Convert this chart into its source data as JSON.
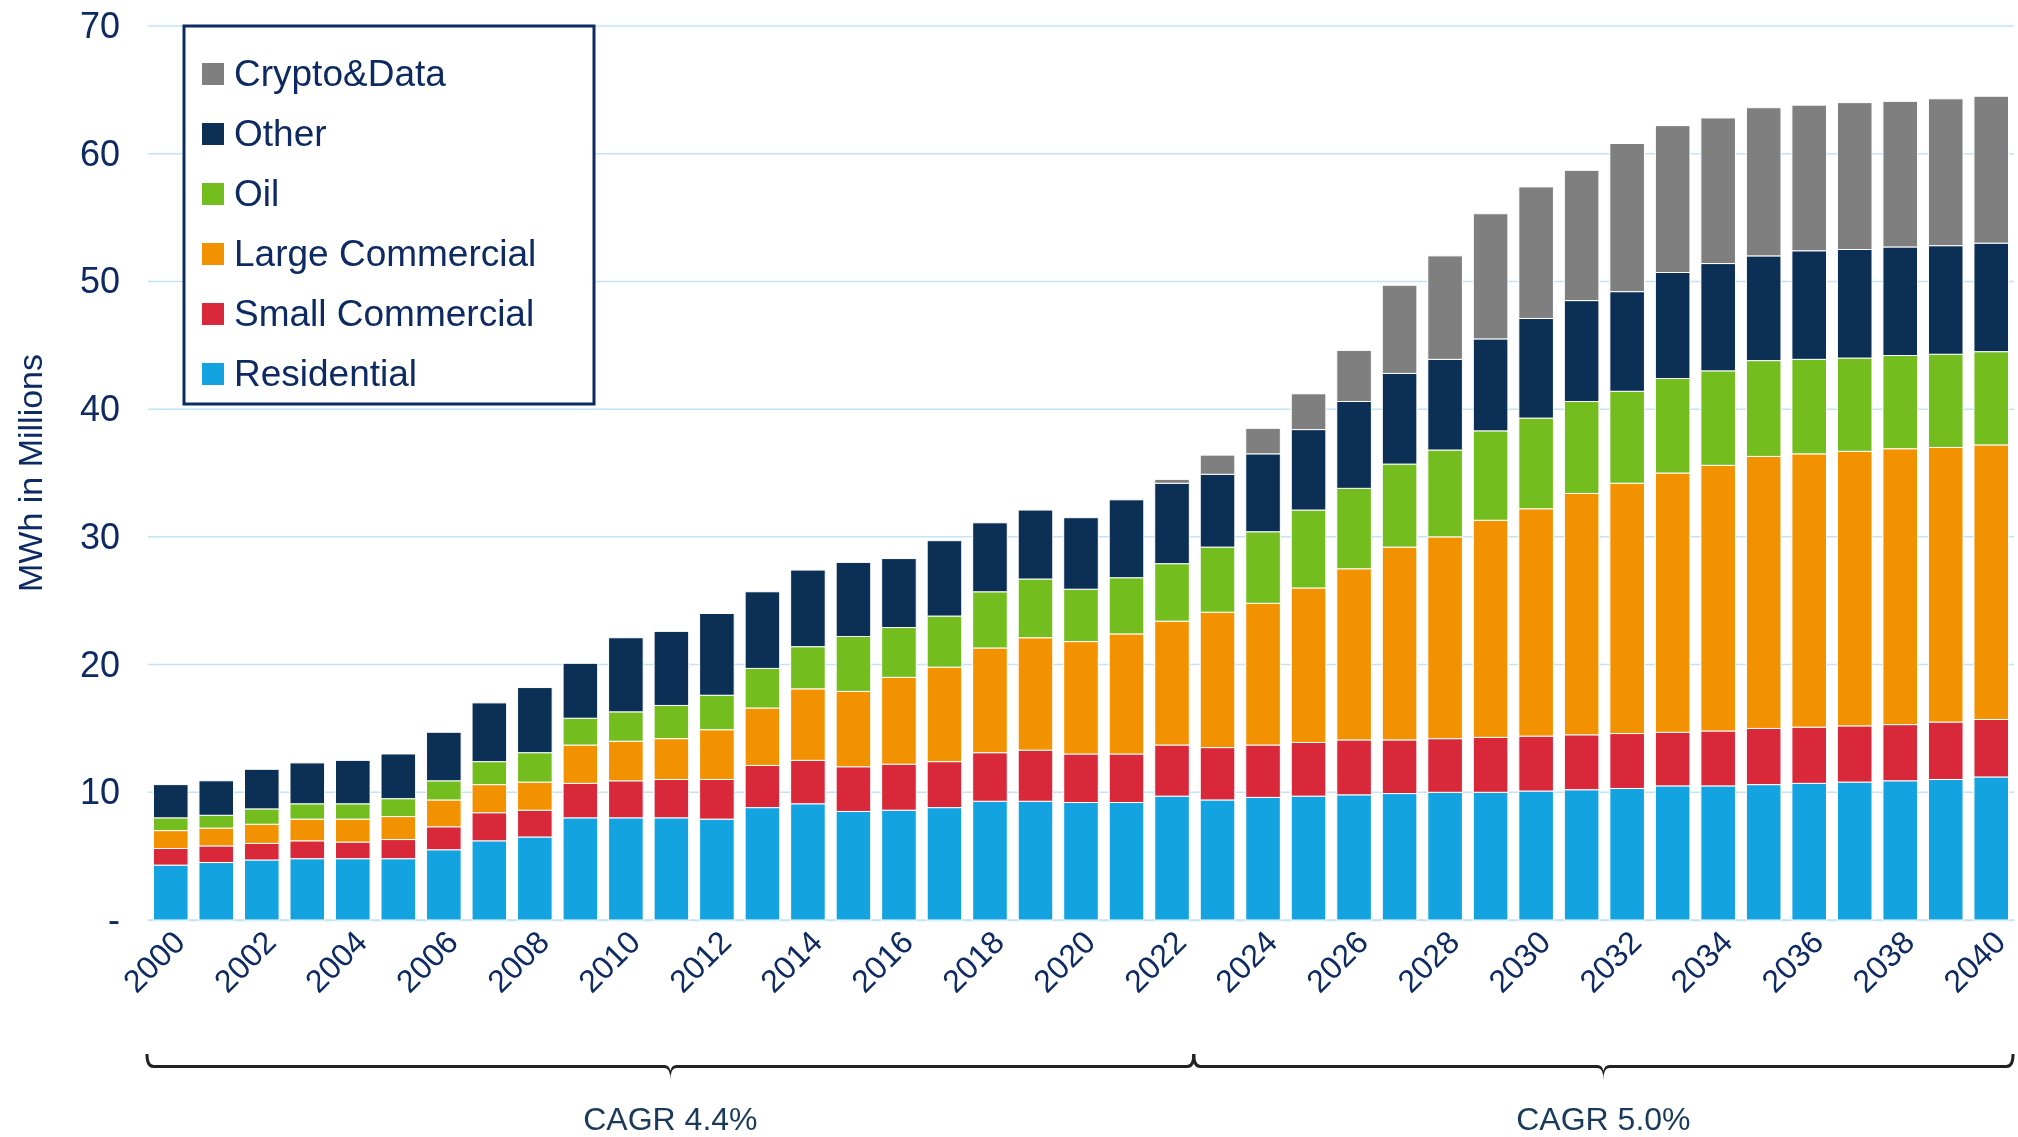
{
  "chart_data": {
    "type": "bar",
    "stacked": true,
    "ylabel": "MWh in Millions",
    "categories": [
      "2000",
      null,
      "2002",
      null,
      "2004",
      null,
      "2006",
      null,
      "2008",
      null,
      "2010",
      null,
      "2012",
      null,
      "2014",
      null,
      "2016",
      null,
      "2018",
      null,
      "2020",
      null,
      "2022",
      null,
      "2024",
      null,
      "2026",
      null,
      "2028",
      null,
      "2030",
      null,
      "2032",
      null,
      "2034",
      null,
      "2036",
      null,
      "2038",
      null,
      "2040"
    ],
    "series": [
      {
        "name": "Residential",
        "color": "#13a3e0",
        "values": [
          4.3,
          4.5,
          4.7,
          4.8,
          4.8,
          4.8,
          5.5,
          6.2,
          6.5,
          8.0,
          8.0,
          8.0,
          7.9,
          8.8,
          9.1,
          8.5,
          8.6,
          8.8,
          9.3,
          9.3,
          9.2,
          9.2,
          9.7,
          9.4,
          9.6,
          9.7,
          9.8,
          9.9,
          10.0,
          10.0,
          10.1,
          10.2,
          10.3,
          10.5,
          10.5,
          10.6,
          10.7,
          10.8,
          10.9,
          11.0,
          11.2
        ]
      },
      {
        "name": "Small Commercial",
        "color": "#d8283a",
        "values": [
          1.3,
          1.3,
          1.3,
          1.4,
          1.3,
          1.5,
          1.8,
          2.2,
          2.1,
          2.7,
          2.9,
          3.0,
          3.1,
          3.3,
          3.4,
          3.5,
          3.6,
          3.6,
          3.8,
          4.0,
          3.8,
          3.8,
          4.0,
          4.1,
          4.1,
          4.2,
          4.3,
          4.2,
          4.2,
          4.3,
          4.3,
          4.3,
          4.3,
          4.2,
          4.3,
          4.4,
          4.4,
          4.4,
          4.4,
          4.5,
          4.5
        ]
      },
      {
        "name": "Large Commercial",
        "color": "#f39200",
        "values": [
          1.4,
          1.4,
          1.5,
          1.7,
          1.8,
          1.8,
          2.1,
          2.2,
          2.2,
          3.0,
          3.1,
          3.2,
          3.9,
          4.5,
          5.6,
          5.9,
          6.8,
          7.4,
          8.2,
          8.8,
          8.8,
          9.4,
          9.7,
          10.6,
          11.1,
          12.1,
          13.4,
          15.1,
          15.8,
          17.0,
          17.8,
          18.9,
          19.6,
          20.3,
          20.8,
          21.3,
          21.4,
          21.5,
          21.6,
          21.5,
          21.5
        ]
      },
      {
        "name": "Oil",
        "color": "#74bd1f",
        "values": [
          1.0,
          1.0,
          1.2,
          1.2,
          1.2,
          1.4,
          1.5,
          1.8,
          2.3,
          2.1,
          2.3,
          2.6,
          2.7,
          3.1,
          3.3,
          4.3,
          3.9,
          4.0,
          4.4,
          4.6,
          4.1,
          4.4,
          4.5,
          5.1,
          5.6,
          6.1,
          6.3,
          6.5,
          6.8,
          7.0,
          7.1,
          7.2,
          7.2,
          7.4,
          7.4,
          7.5,
          7.4,
          7.3,
          7.3,
          7.3,
          7.3
        ]
      },
      {
        "name": "Other",
        "color": "#0b2f55",
        "values": [
          2.6,
          2.7,
          3.1,
          3.2,
          3.4,
          3.5,
          3.8,
          4.6,
          5.1,
          4.3,
          5.8,
          5.8,
          6.4,
          6.0,
          6.0,
          5.8,
          5.4,
          5.9,
          5.4,
          5.4,
          5.6,
          6.1,
          6.3,
          5.7,
          6.1,
          6.3,
          6.8,
          7.1,
          7.1,
          7.2,
          7.8,
          7.9,
          7.8,
          8.3,
          8.4,
          8.2,
          8.5,
          8.5,
          8.5,
          8.5,
          8.5
        ]
      },
      {
        "name": "Crypto&Data",
        "color": "#7f7f7f",
        "values": [
          null,
          null,
          null,
          null,
          null,
          null,
          null,
          null,
          null,
          null,
          null,
          null,
          null,
          null,
          null,
          null,
          null,
          null,
          null,
          null,
          null,
          null,
          0.3,
          1.5,
          2.0,
          2.8,
          4.0,
          6.9,
          8.1,
          9.8,
          10.3,
          10.2,
          11.6,
          11.5,
          11.4,
          11.6,
          11.4,
          11.5,
          11.4,
          11.5,
          11.5
        ]
      }
    ],
    "ylim": [
      0,
      70
    ],
    "yticks": [
      {
        "value": 0,
        "label": "-"
      },
      10,
      20,
      30,
      40,
      50,
      60,
      70
    ],
    "grid": "y",
    "legend": "top left",
    "annotations": [
      "CAGR 4.4%",
      "CAGR 5.0%"
    ]
  }
}
